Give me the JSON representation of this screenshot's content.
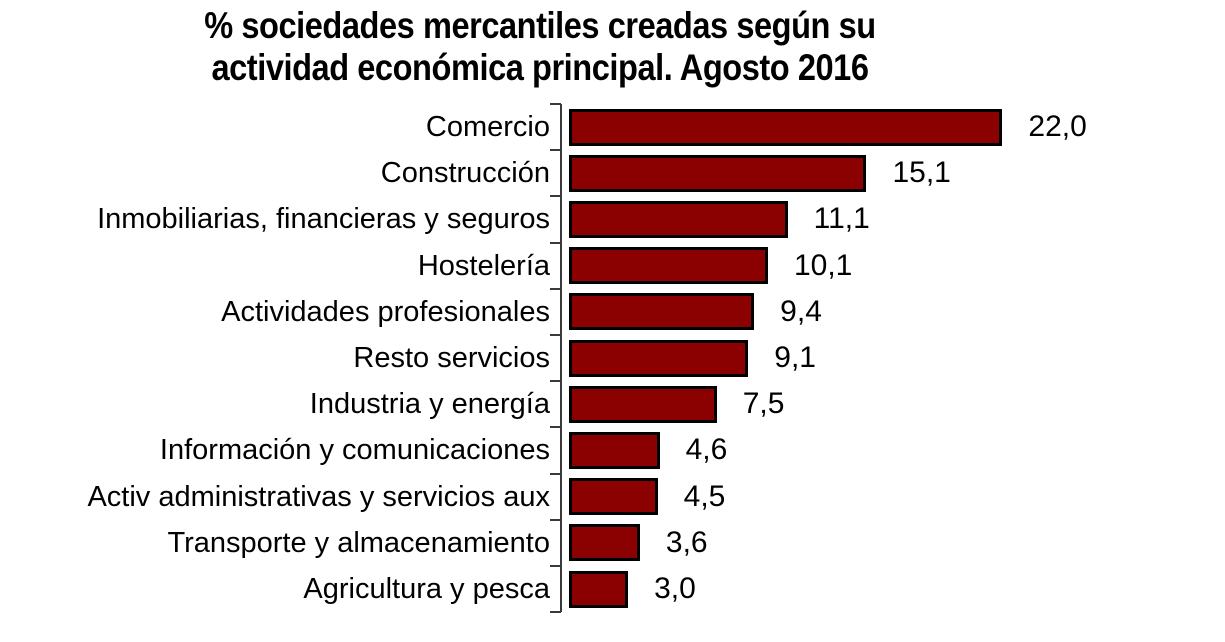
{
  "chart_data": {
    "type": "bar",
    "orientation": "horizontal",
    "title_line1": "% sociedades mercantiles creadas según su",
    "title_line2": "actividad económica principal. Agosto 2016",
    "categories": [
      "Comercio",
      "Construcción",
      "Inmobiliarias, financieras y seguros",
      "Hostelería",
      "Actividades profesionales",
      "Resto servicios",
      "Industria y energía",
      "Información y comunicaciones",
      "Activ administrativas y servicios aux",
      "Transporte y almacenamiento",
      "Agricultura y pesca"
    ],
    "values": [
      22.0,
      15.1,
      11.1,
      10.1,
      9.4,
      9.1,
      7.5,
      4.6,
      4.5,
      3.6,
      3.0
    ],
    "value_labels": [
      "22,0",
      "15,1",
      "11,1",
      "10,1",
      "9,4",
      "9,1",
      "7,5",
      "4,6",
      "4,5",
      "3,6",
      "3,0"
    ],
    "xlim": [
      0,
      22
    ],
    "grid": false,
    "legend": "none",
    "colors": {
      "bar_fill": "#8B0000",
      "bar_border": "#000000",
      "axis": "#3a3a3a",
      "text": "#000000",
      "background": "#FFFFFF"
    }
  }
}
